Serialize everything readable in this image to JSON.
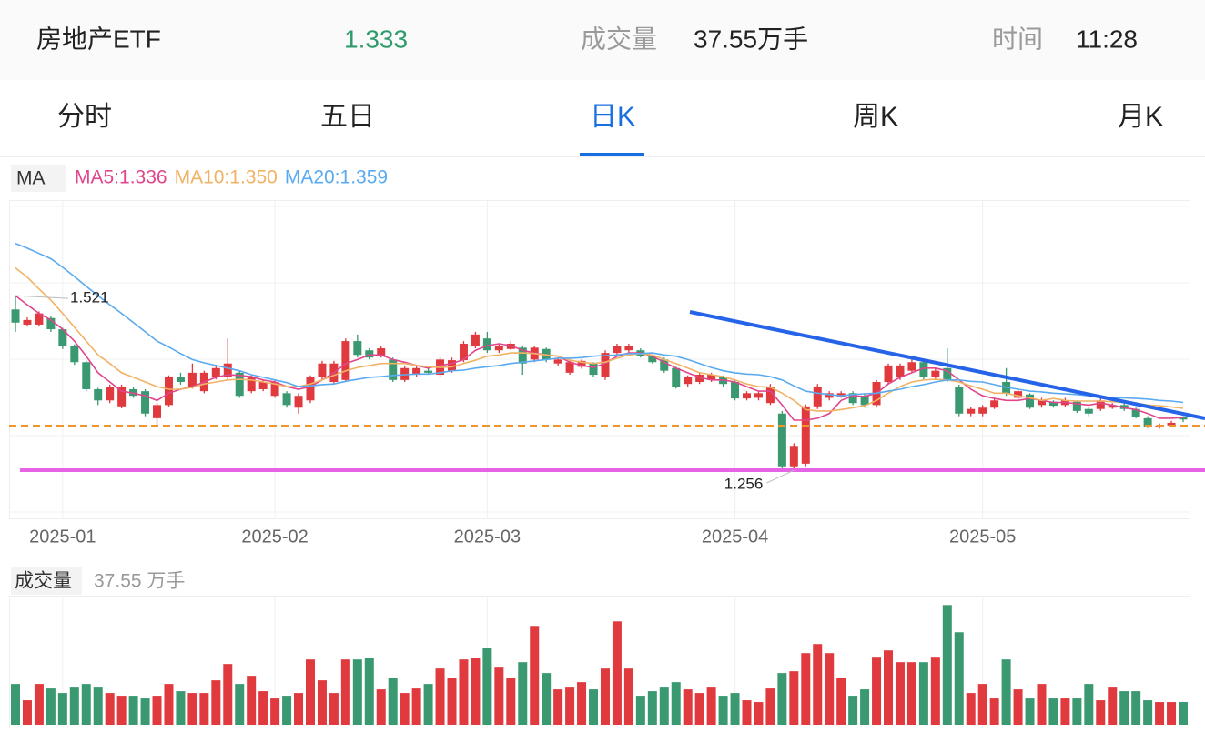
{
  "header": {
    "name": "房地产ETF",
    "price": "1.333",
    "volume_label": "成交量",
    "volume": "37.55万手",
    "time_label": "时间",
    "time": "11:28"
  },
  "tabs": [
    "分时",
    "五日",
    "日K",
    "周K",
    "月K"
  ],
  "active_tab": 2,
  "chart_data": [
    {
      "type": "candlestick",
      "legend_title": "MA",
      "categories": [
        null,
        null,
        null,
        null,
        "2025-01",
        null,
        null,
        null,
        null,
        null,
        null,
        null,
        null,
        null,
        null,
        null,
        null,
        null,
        null,
        null,
        null,
        null,
        "2025-02",
        null,
        null,
        null,
        null,
        null,
        null,
        null,
        null,
        null,
        null,
        null,
        null,
        null,
        null,
        null,
        null,
        null,
        "2025-03",
        null,
        null,
        null,
        null,
        null,
        null,
        null,
        null,
        null,
        null,
        null,
        null,
        null,
        null,
        null,
        null,
        null,
        null,
        null,
        null,
        "2025-04",
        null,
        null,
        null,
        null,
        null,
        null,
        null,
        null,
        null,
        null,
        null,
        null,
        null,
        null,
        null,
        null,
        null,
        null,
        null,
        null,
        "2025-05",
        null,
        null,
        null,
        null,
        null,
        null,
        null,
        null,
        null,
        null,
        null,
        null,
        null,
        null,
        null,
        null,
        null
      ],
      "open": [
        1.5,
        1.477,
        1.477,
        1.487,
        1.47,
        1.445,
        1.42,
        1.379,
        1.362,
        1.353,
        1.379,
        1.376,
        1.335,
        1.355,
        1.397,
        1.383,
        1.376,
        1.397,
        1.397,
        1.404,
        1.376,
        1.379,
        1.369,
        1.373,
        1.351,
        1.362,
        1.397,
        1.39,
        1.393,
        1.452,
        1.438,
        1.429,
        1.424,
        1.393,
        1.401,
        1.407,
        1.401,
        1.407,
        1.423,
        1.445,
        1.456,
        1.438,
        1.44,
        1.442,
        1.424,
        1.44,
        1.418,
        1.404,
        1.413,
        1.418,
        1.397,
        1.434,
        1.438,
        1.438,
        1.429,
        1.424,
        1.411,
        1.387,
        1.39,
        1.393,
        1.397,
        1.39,
        1.365,
        1.366,
        1.358,
        1.342,
        1.262,
        1.266,
        1.353,
        1.366,
        1.368,
        1.373,
        1.369,
        1.355,
        1.39,
        1.397,
        1.407,
        1.42,
        1.397,
        1.411,
        1.383,
        1.342,
        1.342,
        1.351,
        1.39,
        1.366,
        1.371,
        1.355,
        1.36,
        1.355,
        1.36,
        1.349,
        1.349,
        1.351,
        1.355,
        1.349,
        1.335,
        1.321,
        1.324,
        1.337
      ],
      "high": [
        1.521,
        1.488,
        1.497,
        1.49,
        1.472,
        1.447,
        1.422,
        1.381,
        1.386,
        1.386,
        1.383,
        1.379,
        1.358,
        1.4,
        1.404,
        1.418,
        1.407,
        1.414,
        1.456,
        1.407,
        1.4,
        1.393,
        1.393,
        1.376,
        1.373,
        1.4,
        1.422,
        1.422,
        1.456,
        1.462,
        1.441,
        1.445,
        1.427,
        1.414,
        1.414,
        1.411,
        1.427,
        1.427,
        1.452,
        1.466,
        1.466,
        1.448,
        1.452,
        1.445,
        1.445,
        1.442,
        1.427,
        1.424,
        1.424,
        1.42,
        1.438,
        1.448,
        1.448,
        1.441,
        1.431,
        1.427,
        1.413,
        1.4,
        1.404,
        1.404,
        1.4,
        1.393,
        1.376,
        1.376,
        1.387,
        1.346,
        1.297,
        1.356,
        1.387,
        1.376,
        1.376,
        1.376,
        1.373,
        1.393,
        1.418,
        1.418,
        1.424,
        1.424,
        1.411,
        1.441,
        1.386,
        1.352,
        1.355,
        1.366,
        1.411,
        1.379,
        1.373,
        1.366,
        1.362,
        1.366,
        1.362,
        1.352,
        1.366,
        1.358,
        1.358,
        1.351,
        1.338,
        1.327,
        1.331,
        1.338
      ],
      "low": [
        1.466,
        1.474,
        1.474,
        1.466,
        1.44,
        1.416,
        1.376,
        1.355,
        1.358,
        1.35,
        1.366,
        1.338,
        1.324,
        1.352,
        1.386,
        1.38,
        1.373,
        1.394,
        1.393,
        1.366,
        1.373,
        1.376,
        1.366,
        1.351,
        1.342,
        1.358,
        1.393,
        1.387,
        1.39,
        1.427,
        1.424,
        1.427,
        1.39,
        1.39,
        1.397,
        1.401,
        1.397,
        1.404,
        1.42,
        1.441,
        1.434,
        1.434,
        1.438,
        1.401,
        1.42,
        1.42,
        1.414,
        1.401,
        1.41,
        1.397,
        1.393,
        1.431,
        1.434,
        1.427,
        1.418,
        1.404,
        1.38,
        1.383,
        1.387,
        1.39,
        1.383,
        1.362,
        1.362,
        1.362,
        1.355,
        1.259,
        1.256,
        1.262,
        1.349,
        1.362,
        1.366,
        1.355,
        1.351,
        1.351,
        1.387,
        1.393,
        1.404,
        1.393,
        1.393,
        1.39,
        1.338,
        1.338,
        1.338,
        1.349,
        1.369,
        1.362,
        1.349,
        1.351,
        1.351,
        1.352,
        1.343,
        1.338,
        1.346,
        1.349,
        1.346,
        1.335,
        1.32,
        1.319,
        1.322,
        1.329
      ],
      "close": [
        1.48,
        1.484,
        1.494,
        1.47,
        1.445,
        1.42,
        1.379,
        1.362,
        1.383,
        1.383,
        1.369,
        1.342,
        1.355,
        1.397,
        1.39,
        1.404,
        1.404,
        1.411,
        1.418,
        1.369,
        1.397,
        1.39,
        1.39,
        1.355,
        1.369,
        1.397,
        1.418,
        1.418,
        1.452,
        1.431,
        1.427,
        1.441,
        1.393,
        1.411,
        1.411,
        1.404,
        1.424,
        1.423,
        1.448,
        1.462,
        1.438,
        1.445,
        1.448,
        1.418,
        1.442,
        1.424,
        1.424,
        1.42,
        1.422,
        1.401,
        1.434,
        1.445,
        1.445,
        1.429,
        1.42,
        1.407,
        1.383,
        1.397,
        1.401,
        1.401,
        1.387,
        1.365,
        1.373,
        1.373,
        1.383,
        1.262,
        1.293,
        1.353,
        1.383,
        1.373,
        1.373,
        1.358,
        1.355,
        1.39,
        1.415,
        1.415,
        1.42,
        1.397,
        1.407,
        1.393,
        1.342,
        1.349,
        1.351,
        1.362,
        1.373,
        1.376,
        1.351,
        1.362,
        1.354,
        1.362,
        1.346,
        1.342,
        1.362,
        1.355,
        1.349,
        1.337,
        1.321,
        1.324,
        1.328,
        1.333
      ],
      "up_color": "#e0393e",
      "down_color": "#3a9970",
      "ylim": [
        1.183,
        1.666
      ],
      "series": [
        {
          "name": "MA5:1.336",
          "color": "#e0468c",
          "values": [
            1.521,
            1.507,
            1.494,
            1.484,
            1.47,
            1.452,
            1.429,
            1.404,
            1.39,
            1.376,
            1.373,
            1.369,
            1.362,
            1.373,
            1.379,
            1.383,
            1.39,
            1.397,
            1.401,
            1.4,
            1.398,
            1.393,
            1.39,
            1.383,
            1.379,
            1.383,
            1.393,
            1.404,
            1.418,
            1.424,
            1.431,
            1.431,
            1.424,
            1.42,
            1.415,
            1.411,
            1.415,
            1.418,
            1.424,
            1.438,
            1.445,
            1.448,
            1.445,
            1.438,
            1.434,
            1.431,
            1.429,
            1.42,
            1.415,
            1.412,
            1.418,
            1.429,
            1.434,
            1.434,
            1.429,
            1.42,
            1.411,
            1.404,
            1.397,
            1.393,
            1.393,
            1.39,
            1.383,
            1.376,
            1.376,
            1.355,
            1.332,
            1.332,
            1.335,
            1.342,
            1.362,
            1.369,
            1.368,
            1.373,
            1.387,
            1.397,
            1.404,
            1.411,
            1.411,
            1.407,
            1.393,
            1.379,
            1.369,
            1.365,
            1.362,
            1.362,
            1.365,
            1.362,
            1.359,
            1.359,
            1.357,
            1.355,
            1.358,
            1.355,
            1.351,
            1.348,
            1.342,
            1.335,
            1.335,
            1.336
          ]
        },
        {
          "name": "MA10:1.350",
          "color": "#f1b264",
          "values": [
            1.563,
            1.549,
            1.531,
            1.514,
            1.494,
            1.473,
            1.452,
            1.431,
            1.418,
            1.404,
            1.397,
            1.39,
            1.383,
            1.379,
            1.379,
            1.382,
            1.387,
            1.39,
            1.393,
            1.394,
            1.393,
            1.39,
            1.387,
            1.383,
            1.383,
            1.387,
            1.393,
            1.4,
            1.407,
            1.412,
            1.415,
            1.418,
            1.418,
            1.418,
            1.415,
            1.413,
            1.412,
            1.413,
            1.418,
            1.423,
            1.429,
            1.431,
            1.434,
            1.434,
            1.433,
            1.431,
            1.429,
            1.423,
            1.42,
            1.418,
            1.42,
            1.426,
            1.431,
            1.433,
            1.431,
            1.424,
            1.418,
            1.411,
            1.404,
            1.401,
            1.398,
            1.393,
            1.387,
            1.383,
            1.382,
            1.373,
            1.362,
            1.348,
            1.346,
            1.346,
            1.348,
            1.351,
            1.354,
            1.362,
            1.373,
            1.383,
            1.39,
            1.393,
            1.394,
            1.393,
            1.39,
            1.384,
            1.379,
            1.373,
            1.373,
            1.369,
            1.366,
            1.362,
            1.365,
            1.362,
            1.361,
            1.361,
            1.361,
            1.36,
            1.359,
            1.358,
            1.355,
            1.354,
            1.352,
            1.35
          ]
        },
        {
          "name": "MA20:1.359",
          "color": "#5aaaf0",
          "values": [
            1.6,
            1.593,
            1.585,
            1.577,
            1.564,
            1.55,
            1.535,
            1.521,
            1.507,
            1.494,
            1.48,
            1.466,
            1.452,
            1.443,
            1.433,
            1.424,
            1.419,
            1.415,
            1.411,
            1.407,
            1.401,
            1.397,
            1.393,
            1.389,
            1.383,
            1.384,
            1.386,
            1.387,
            1.391,
            1.394,
            1.397,
            1.398,
            1.4,
            1.401,
            1.402,
            1.402,
            1.404,
            1.407,
            1.408,
            1.411,
            1.413,
            1.415,
            1.418,
            1.42,
            1.422,
            1.424,
            1.426,
            1.426,
            1.427,
            1.429,
            1.43,
            1.431,
            1.433,
            1.433,
            1.434,
            1.431,
            1.429,
            1.424,
            1.418,
            1.412,
            1.407,
            1.404,
            1.402,
            1.401,
            1.398,
            1.393,
            1.384,
            1.376,
            1.373,
            1.371,
            1.369,
            1.371,
            1.372,
            1.373,
            1.376,
            1.379,
            1.383,
            1.386,
            1.39,
            1.393,
            1.393,
            1.391,
            1.39,
            1.386,
            1.382,
            1.379,
            1.376,
            1.375,
            1.373,
            1.372,
            1.371,
            1.369,
            1.368,
            1.366,
            1.366,
            1.365,
            1.364,
            1.362,
            1.361,
            1.359
          ]
        }
      ]
    },
    {
      "type": "bar",
      "title": "成交量",
      "subtitle": "37.55 万手",
      "values": [
        67.5,
        40.5,
        67.5,
        60,
        52.5,
        63,
        67.5,
        63,
        52.5,
        48,
        48,
        43.5,
        48,
        67.5,
        55.5,
        52.5,
        52.5,
        73.5,
        100.5,
        67.5,
        81,
        55.5,
        43.5,
        48,
        52.5,
        108,
        73.5,
        52.5,
        108,
        108,
        111,
        58.5,
        78,
        52.5,
        60,
        67.5,
        93,
        78,
        108,
        111,
        127.5,
        96,
        78,
        103.5,
        163.5,
        85.5,
        58.5,
        63,
        70.5,
        58.5,
        93,
        171,
        93,
        48,
        55.5,
        63,
        70.5,
        58.5,
        52.5,
        63,
        48,
        52.5,
        40.5,
        37.5,
        60,
        85.5,
        88.5,
        118.5,
        133.5,
        118.5,
        78,
        48,
        58.5,
        112.5,
        123,
        103.5,
        103.5,
        103.5,
        112.5,
        198,
        153,
        52.5,
        67.5,
        43.5,
        108,
        58.5,
        43.5,
        67.5,
        43.5,
        43.5,
        43.5,
        67.5,
        40.5,
        63,
        55.5,
        55.5,
        40.5,
        37.5,
        37.5,
        37.55
      ],
      "ylim": [
        0,
        200
      ]
    }
  ]
}
